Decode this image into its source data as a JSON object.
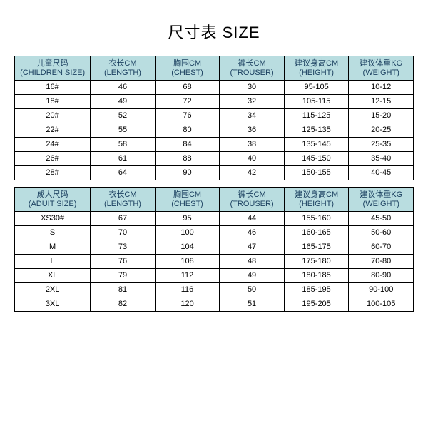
{
  "title": "尺寸表 SIZE",
  "colors": {
    "header_bg": "#b9dde0",
    "border": "#000000",
    "background": "#ffffff",
    "header_text": "#1a3f5f"
  },
  "columns_children": [
    {
      "cn": "儿童尺码",
      "en": "(CHILDREN SIZE)"
    },
    {
      "cn": "衣长CM",
      "en": "(LENGTH)"
    },
    {
      "cn": "胸围CM",
      "en": "(CHEST)"
    },
    {
      "cn": "裤长CM",
      "en": "(TROUSER)"
    },
    {
      "cn": "建议身高CM",
      "en": "(HEIGHT)"
    },
    {
      "cn": "建议体重KG",
      "en": "(WEIGHT)"
    }
  ],
  "rows_children": [
    [
      "16#",
      "46",
      "68",
      "30",
      "95-105",
      "10-12"
    ],
    [
      "18#",
      "49",
      "72",
      "32",
      "105-115",
      "12-15"
    ],
    [
      "20#",
      "52",
      "76",
      "34",
      "115-125",
      "15-20"
    ],
    [
      "22#",
      "55",
      "80",
      "36",
      "125-135",
      "20-25"
    ],
    [
      "24#",
      "58",
      "84",
      "38",
      "135-145",
      "25-35"
    ],
    [
      "26#",
      "61",
      "88",
      "40",
      "145-150",
      "35-40"
    ],
    [
      "28#",
      "64",
      "90",
      "42",
      "150-155",
      "40-45"
    ]
  ],
  "columns_adult": [
    {
      "cn": "成人尺码",
      "en": "(ADUIT SIZE)"
    },
    {
      "cn": "衣长CM",
      "en": "(LENGTH)"
    },
    {
      "cn": "胸围CM",
      "en": "(CHEST)"
    },
    {
      "cn": "裤长CM",
      "en": "(TROUSER)"
    },
    {
      "cn": "建议身高CM",
      "en": "(HEIGHT)"
    },
    {
      "cn": "建议体重KG",
      "en": "(WEIGHT)"
    }
  ],
  "rows_adult": [
    [
      "XS30#",
      "67",
      "95",
      "44",
      "155-160",
      "45-50"
    ],
    [
      "S",
      "70",
      "100",
      "46",
      "160-165",
      "50-60"
    ],
    [
      "M",
      "73",
      "104",
      "47",
      "165-175",
      "60-70"
    ],
    [
      "L",
      "76",
      "108",
      "48",
      "175-180",
      "70-80"
    ],
    [
      "XL",
      "79",
      "112",
      "49",
      "180-185",
      "80-90"
    ],
    [
      "2XL",
      "81",
      "116",
      "50",
      "185-195",
      "90-100"
    ],
    [
      "3XL",
      "82",
      "120",
      "51",
      "195-205",
      "100-105"
    ]
  ]
}
